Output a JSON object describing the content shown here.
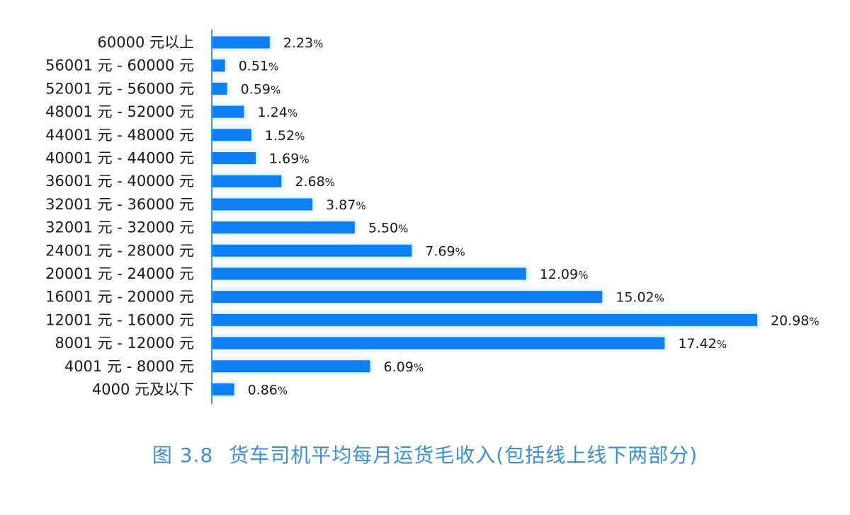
{
  "colors": {
    "bar": "#0d7ff2",
    "glow": "#bfe3ff",
    "axis": "#4a93d6",
    "caption": "#3b8fd8"
  },
  "caption": {
    "figure_number": "图 3.8",
    "title": "货车司机平均每月运货毛收入(包括线上线下两部分)"
  },
  "chart_data": {
    "type": "bar",
    "orientation": "horizontal",
    "title": "货车司机平均每月运货毛收入(包括线上线下两部分)",
    "unit": "%",
    "categories": [
      "60000 元以上",
      "56001 元 - 60000 元",
      "52001 元 - 56000 元",
      "48001 元 - 52000 元",
      "44001 元 - 48000 元",
      "40001 元 - 44000 元",
      "36001 元 - 40000 元",
      "32001 元 - 36000 元",
      "32001 元 - 32000 元",
      "24001 元 - 28000 元",
      "20001 元 - 24000 元",
      "16001 元 - 20000 元",
      "12001 元 - 16000 元",
      "8001 元 - 12000 元",
      "4001 元 - 8000 元",
      "4000 元及以下"
    ],
    "values": [
      2.23,
      0.51,
      0.59,
      1.24,
      1.52,
      1.69,
      2.68,
      3.87,
      5.5,
      7.69,
      12.09,
      15.02,
      20.98,
      17.42,
      6.09,
      0.86
    ],
    "value_labels": [
      "2.23",
      "0.51",
      "0.59",
      "1.24",
      "1.52",
      "1.69",
      "2.68",
      "3.87",
      "5.50",
      "7.69",
      "12.09",
      "15.02",
      "20.98",
      "17.42",
      "6.09",
      "0.86"
    ],
    "xlim": [
      0,
      20.98
    ],
    "grid": false
  }
}
